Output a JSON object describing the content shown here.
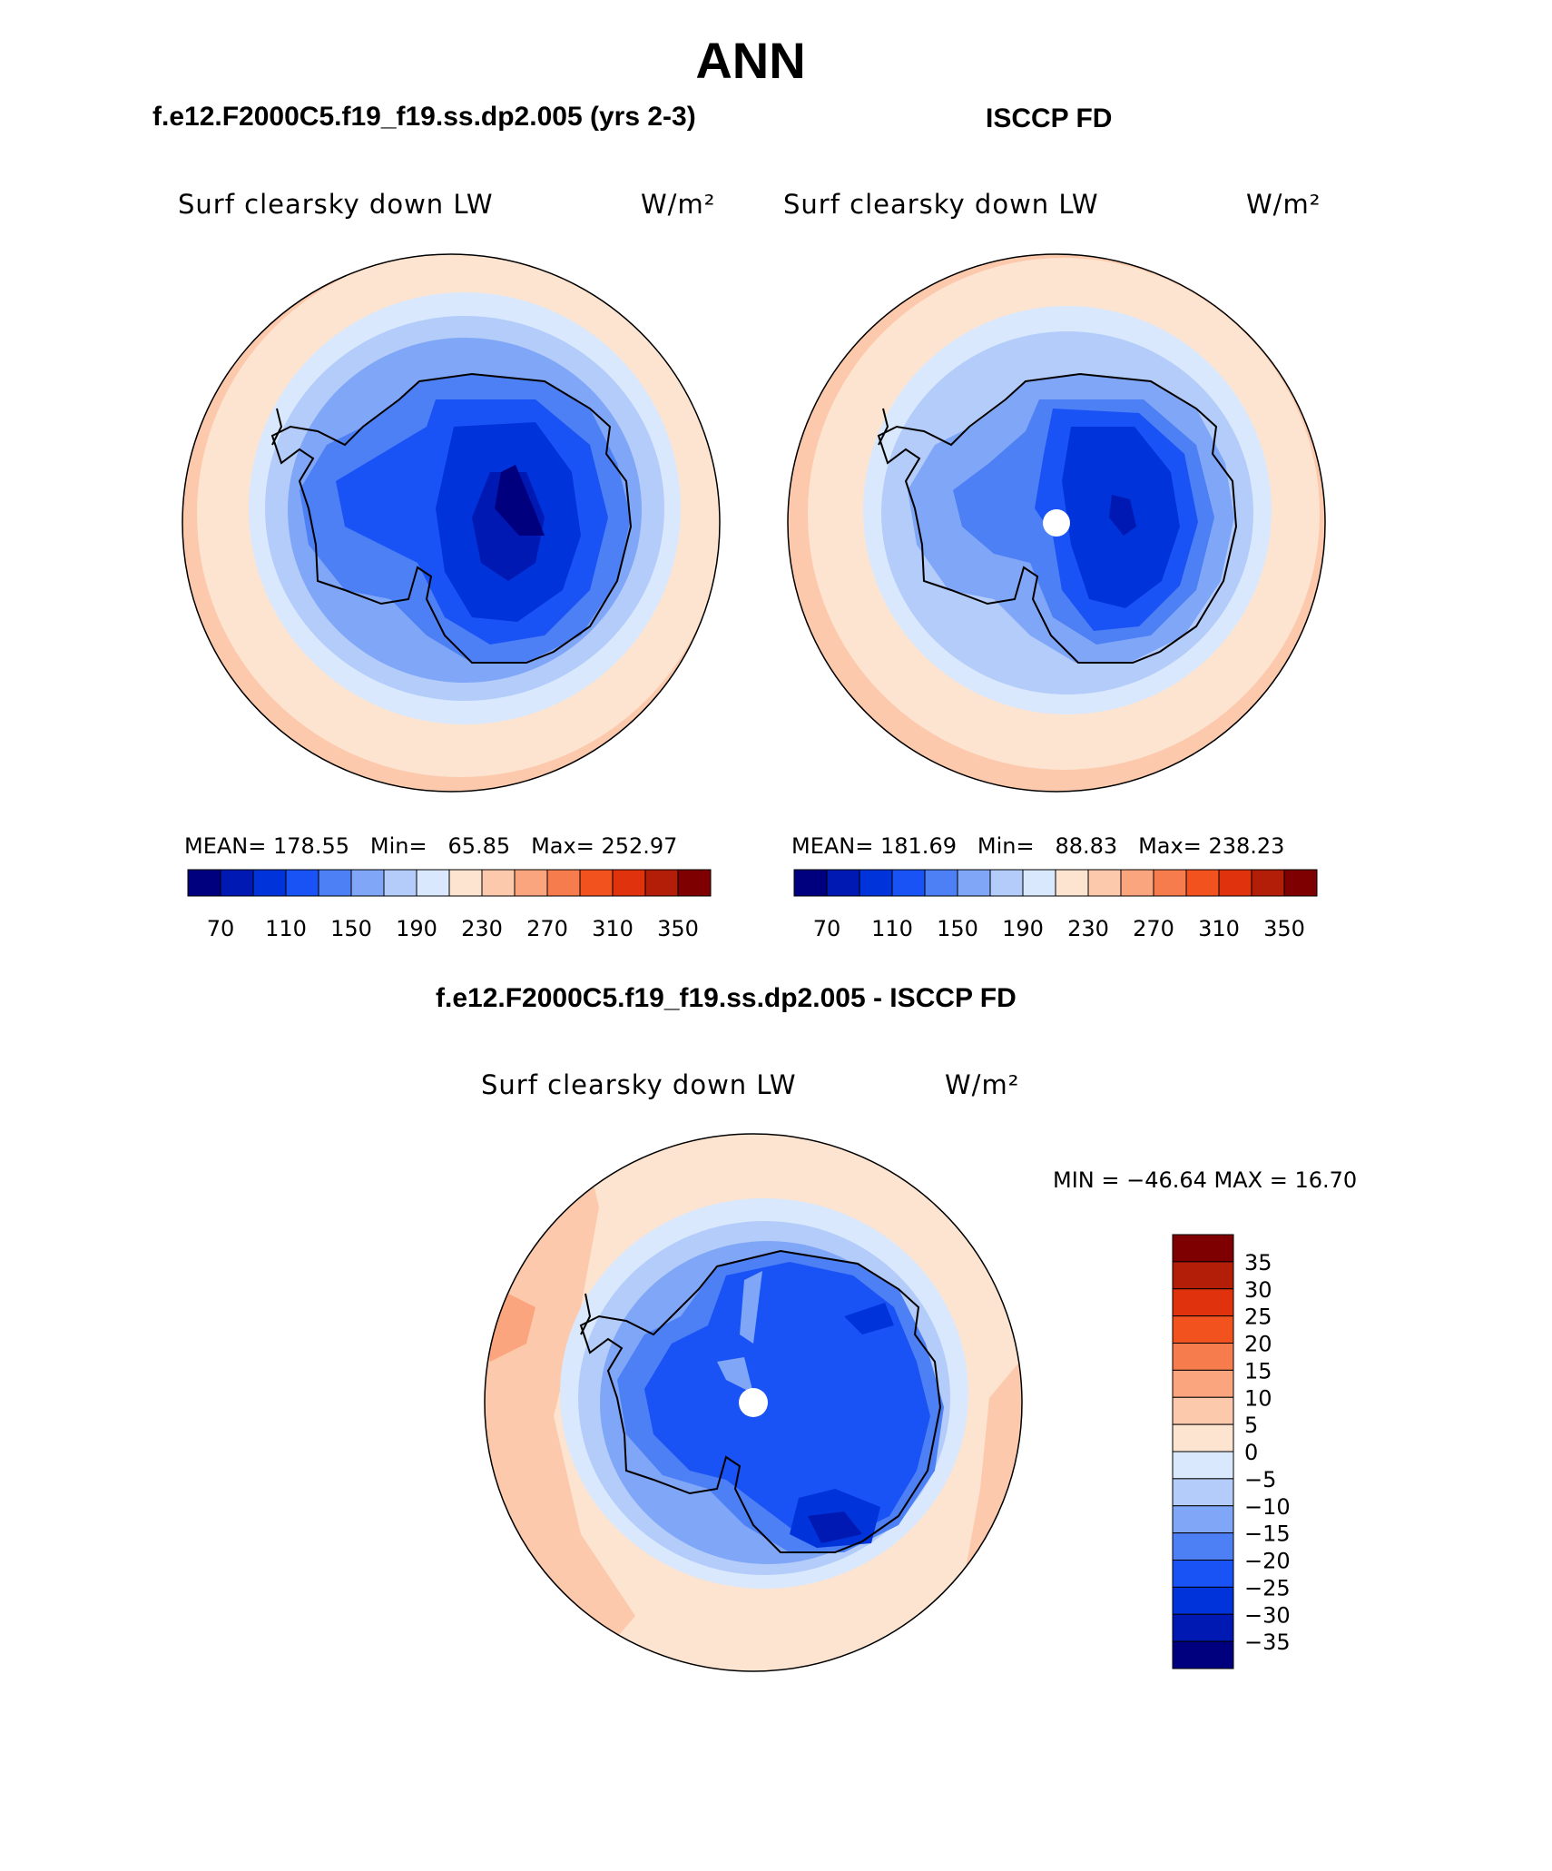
{
  "title": "ANN",
  "panels": [
    {
      "case": "f.e12.F2000C5.f19_f19.ss.dp2.005 (yrs 2-3)",
      "variable": "Surf clearsky down LW",
      "units": "W/m²",
      "stats": {
        "mean_label": "MEAN=",
        "mean": "178.55",
        "min_label": "Min=",
        "min": "65.85",
        "max_label": "Max=",
        "max": "252.97"
      }
    },
    {
      "case": "ISCCP FD",
      "variable": "Surf clearsky down LW",
      "units": "W/m²",
      "stats": {
        "mean_label": "MEAN=",
        "mean": "181.69",
        "min_label": "Min=",
        "min": "88.83",
        "max_label": "Max=",
        "max": "238.23"
      }
    }
  ],
  "field_colorbar": {
    "colors": [
      "#00007f",
      "#0019b3",
      "#0033d9",
      "#1a53f5",
      "#4d7ff5",
      "#80a6f7",
      "#b3ccfa",
      "#d9e8fc",
      "#fde4d0",
      "#fcc9ac",
      "#fba57e",
      "#f77c4d",
      "#f2521e",
      "#e0320d",
      "#b31e08",
      "#7f0000"
    ],
    "labels": [
      "70",
      "110",
      "150",
      "190",
      "230",
      "270",
      "310",
      "350"
    ]
  },
  "difference": {
    "title": "f.e12.F2000C5.f19_f19.ss.dp2.005 - ISCCP FD",
    "variable": "Surf clearsky down LW",
    "units": "W/m²",
    "minmax": "MIN = −46.64  MAX =   16.70",
    "colorbar": {
      "colors": [
        "#7f0000",
        "#b31e08",
        "#e0320d",
        "#f2521e",
        "#f77c4d",
        "#fba57e",
        "#fcc9ac",
        "#fde4d0",
        "#d9e8fc",
        "#b3ccfa",
        "#80a6f7",
        "#4d7ff5",
        "#1a53f5",
        "#0033d9",
        "#0019b3",
        "#00007f"
      ],
      "labels": [
        "35",
        "30",
        "25",
        "20",
        "15",
        "10",
        "5",
        "0",
        "−5",
        "−10",
        "−15",
        "−20",
        "−25",
        "−30",
        "−35"
      ]
    }
  }
}
